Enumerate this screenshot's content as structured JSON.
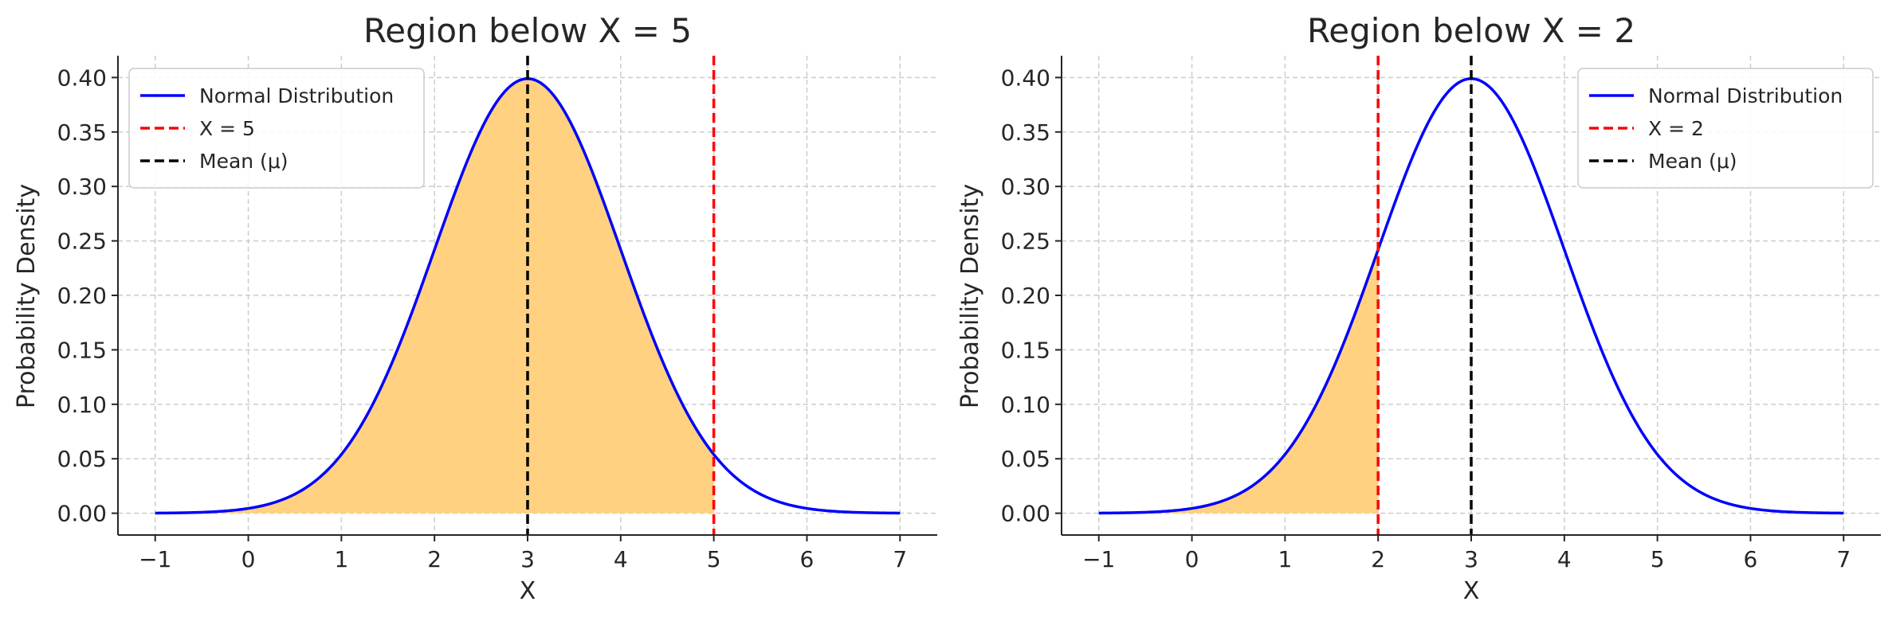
{
  "chart_data": [
    {
      "type": "area",
      "title": "Region below X = 5",
      "xlabel": "X",
      "ylabel": "Probability Density",
      "xlim": [
        -1.4,
        7.4
      ],
      "ylim": [
        -0.02,
        0.42
      ],
      "xticks": [
        -1,
        0,
        1,
        2,
        3,
        4,
        5,
        6,
        7
      ],
      "xtick_labels": [
        "−1",
        "0",
        "1",
        "2",
        "3",
        "4",
        "5",
        "6",
        "7"
      ],
      "yticks": [
        0,
        0.05,
        0.1,
        0.15,
        0.2,
        0.25,
        0.3,
        0.35,
        0.4
      ],
      "ytick_labels": [
        "0.00",
        "0.05",
        "0.10",
        "0.15",
        "0.20",
        "0.25",
        "0.30",
        "0.35",
        "0.40"
      ],
      "grid": true,
      "legend_position": "top-left",
      "distribution": {
        "mean": 3,
        "sd": 1,
        "x_min": -1,
        "x_max": 7
      },
      "shaded_region": {
        "from": -1,
        "to": 5
      },
      "vlines": [
        {
          "x": 5,
          "color": "#ff0000",
          "label": "X = 5"
        },
        {
          "x": 3,
          "color": "#000000",
          "label": "Mean (μ)"
        }
      ],
      "series": [
        {
          "name": "Normal Distribution",
          "color": "#0000ff",
          "x": [
            -1,
            0,
            0.5,
            1,
            1.5,
            2,
            2.5,
            3,
            3.5,
            4,
            4.5,
            5,
            5.5,
            6,
            7
          ],
          "y": [
            0.0001,
            0.0044,
            0.0175,
            0.054,
            0.1295,
            0.242,
            0.3521,
            0.3989,
            0.3521,
            0.242,
            0.1295,
            0.054,
            0.0175,
            0.0044,
            0.0001
          ]
        }
      ],
      "legend": [
        "Normal Distribution",
        "X = 5",
        "Mean (μ)"
      ]
    },
    {
      "type": "area",
      "title": "Region below X = 2",
      "xlabel": "X",
      "ylabel": "Probability Density",
      "xlim": [
        -1.4,
        7.4
      ],
      "ylim": [
        -0.02,
        0.42
      ],
      "xticks": [
        -1,
        0,
        1,
        2,
        3,
        4,
        5,
        6,
        7
      ],
      "xtick_labels": [
        "−1",
        "0",
        "1",
        "2",
        "3",
        "4",
        "5",
        "6",
        "7"
      ],
      "yticks": [
        0,
        0.05,
        0.1,
        0.15,
        0.2,
        0.25,
        0.3,
        0.35,
        0.4
      ],
      "ytick_labels": [
        "0.00",
        "0.05",
        "0.10",
        "0.15",
        "0.20",
        "0.25",
        "0.30",
        "0.35",
        "0.40"
      ],
      "grid": true,
      "legend_position": "top-right",
      "distribution": {
        "mean": 3,
        "sd": 1,
        "x_min": -1,
        "x_max": 7
      },
      "shaded_region": {
        "from": -1,
        "to": 2
      },
      "vlines": [
        {
          "x": 2,
          "color": "#ff0000",
          "label": "X = 2"
        },
        {
          "x": 3,
          "color": "#000000",
          "label": "Mean (μ)"
        }
      ],
      "series": [
        {
          "name": "Normal Distribution",
          "color": "#0000ff",
          "x": [
            -1,
            0,
            0.5,
            1,
            1.5,
            2,
            2.5,
            3,
            3.5,
            4,
            4.5,
            5,
            5.5,
            6,
            7
          ],
          "y": [
            0.0001,
            0.0044,
            0.0175,
            0.054,
            0.1295,
            0.242,
            0.3521,
            0.3989,
            0.3521,
            0.242,
            0.1295,
            0.054,
            0.0175,
            0.0044,
            0.0001
          ]
        }
      ],
      "legend": [
        "Normal Distribution",
        "X = 2",
        "Mean (μ)"
      ]
    }
  ],
  "colors": {
    "fill": "#ffd180",
    "grid": "#cccccc",
    "axis": "#262626"
  }
}
